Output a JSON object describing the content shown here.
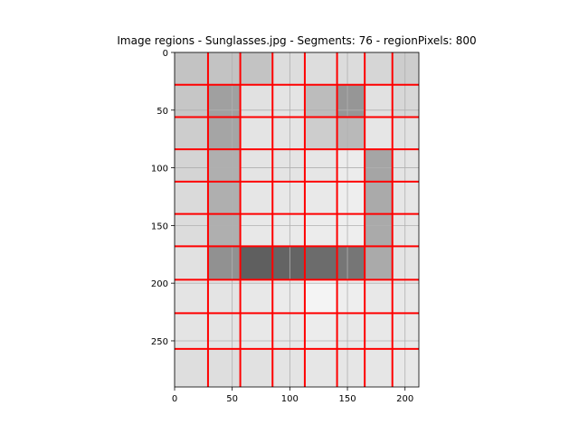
{
  "chart_data": {
    "type": "heatmap",
    "title": "Image regions - Sunglasses.jpg - Segments: 76 - regionPixels: 800",
    "xlabel": "",
    "ylabel": "",
    "xlim": [
      0,
      212
    ],
    "ylim": [
      290,
      0
    ],
    "x_ticks": [
      0,
      50,
      100,
      150,
      200
    ],
    "y_ticks": [
      0,
      50,
      100,
      150,
      200,
      250
    ],
    "x_tick_labels": [
      "0",
      "50",
      "100",
      "150",
      "200"
    ],
    "y_tick_labels": [
      "0",
      "50",
      "100",
      "150",
      "200",
      "250"
    ],
    "grid": true,
    "boundary_color": "#ff0000",
    "column_edges": [
      0,
      29,
      57,
      85,
      113,
      141,
      165,
      189,
      212
    ],
    "row_edges": [
      0,
      28,
      56,
      84,
      112,
      140,
      168,
      197,
      226,
      257,
      290
    ],
    "cell_gray": [
      [
        195,
        195,
        195,
        221,
        221,
        220,
        214,
        205
      ],
      [
        198,
        160,
        225,
        228,
        188,
        150,
        225,
        215
      ],
      [
        205,
        165,
        228,
        228,
        205,
        185,
        230,
        225
      ],
      [
        212,
        175,
        228,
        228,
        230,
        236,
        165,
        228
      ],
      [
        218,
        175,
        230,
        232,
        233,
        238,
        170,
        230
      ],
      [
        220,
        175,
        232,
        234,
        236,
        238,
        170,
        230
      ],
      [
        225,
        145,
        95,
        100,
        108,
        118,
        170,
        228
      ],
      [
        228,
        228,
        232,
        235,
        244,
        238,
        232,
        232
      ],
      [
        228,
        228,
        232,
        232,
        236,
        232,
        232,
        232
      ],
      [
        222,
        222,
        225,
        228,
        230,
        230,
        230,
        232
      ]
    ]
  }
}
